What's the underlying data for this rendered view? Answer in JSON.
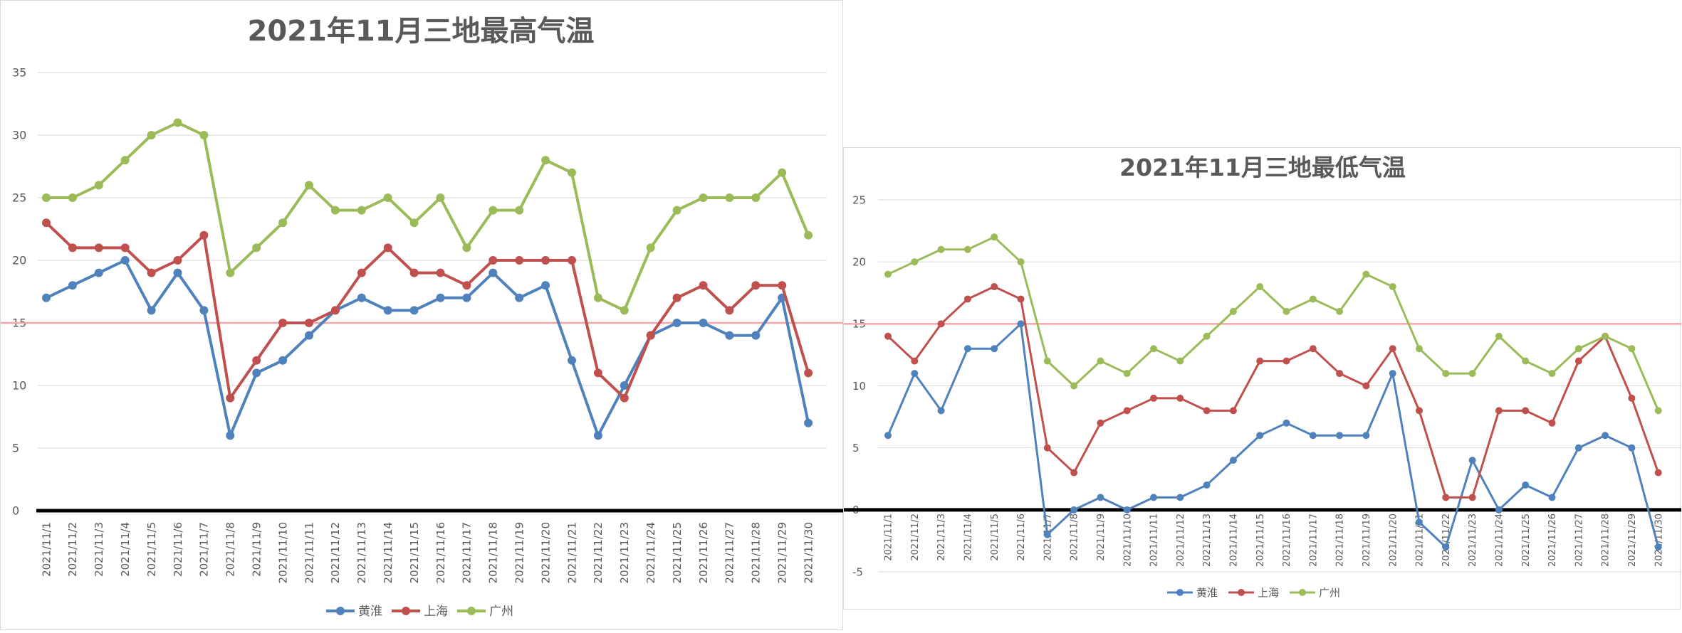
{
  "chart_data": [
    {
      "type": "line",
      "title": "2021年11月三地最高气温",
      "categories": [
        "2021/11/1",
        "2021/11/2",
        "2021/11/3",
        "2021/11/4",
        "2021/11/5",
        "2021/11/6",
        "2021/11/7",
        "2021/11/8",
        "2021/11/9",
        "2021/11/10",
        "2021/11/11",
        "2021/11/12",
        "2021/11/13",
        "2021/11/14",
        "2021/11/15",
        "2021/11/16",
        "2021/11/17",
        "2021/11/18",
        "2021/11/19",
        "2021/11/20",
        "2021/11/21",
        "2021/11/22",
        "2021/11/23",
        "2021/11/24",
        "2021/11/25",
        "2021/11/26",
        "2021/11/27",
        "2021/11/28",
        "2021/11/29",
        "2021/11/30"
      ],
      "ylim": [
        0,
        35
      ],
      "yticks": [
        0,
        5,
        10,
        15,
        20,
        25,
        30,
        35
      ],
      "ytick_labels": [
        "0",
        "5",
        "10",
        "15",
        "20",
        "25",
        "30",
        "35"
      ],
      "grid": true,
      "legend_position": "bottom",
      "reference_line": {
        "value": 15,
        "color": "#f4a6a6"
      },
      "series": [
        {
          "name": "黄淮",
          "color": "#4f81bd",
          "values": [
            17,
            18,
            19,
            20,
            16,
            19,
            16,
            6,
            11,
            12,
            14,
            16,
            17,
            16,
            16,
            17,
            17,
            19,
            17,
            18,
            12,
            6,
            10,
            14,
            15,
            15,
            14,
            14,
            17,
            7
          ]
        },
        {
          "name": "上海",
          "color": "#c0504d",
          "values": [
            23,
            21,
            21,
            21,
            19,
            20,
            22,
            9,
            12,
            15,
            15,
            16,
            19,
            21,
            19,
            19,
            18,
            20,
            20,
            20,
            20,
            11,
            9,
            14,
            17,
            18,
            16,
            18,
            18,
            11
          ]
        },
        {
          "name": "广州",
          "color": "#9bbb59",
          "values": [
            25,
            25,
            26,
            28,
            30,
            31,
            30,
            19,
            21,
            23,
            26,
            24,
            24,
            25,
            23,
            25,
            21,
            24,
            24,
            28,
            27,
            17,
            16,
            21,
            24,
            25,
            25,
            25,
            27,
            22
          ]
        }
      ]
    },
    {
      "type": "line",
      "title": "2021年11月三地最低气温",
      "categories": [
        "2021/11/1",
        "2021/11/2",
        "2021/11/3",
        "2021/11/4",
        "2021/11/5",
        "2021/11/6",
        "2021/11/7",
        "2021/11/8",
        "2021/11/9",
        "2021/11/10",
        "2021/11/11",
        "2021/11/12",
        "2021/11/13",
        "2021/11/14",
        "2021/11/15",
        "2021/11/16",
        "2021/11/17",
        "2021/11/18",
        "2021/11/19",
        "2021/11/20",
        "2021/11/21",
        "2021/11/22",
        "2021/11/23",
        "2021/11/24",
        "2021/11/25",
        "2021/11/26",
        "2021/11/27",
        "2021/11/28",
        "2021/11/29",
        "2021/11/30"
      ],
      "ylim": [
        -5,
        25
      ],
      "yticks": [
        -5,
        0,
        5,
        10,
        15,
        20,
        25
      ],
      "ytick_labels": [
        "-5",
        "0",
        "5",
        "10",
        "15",
        "20",
        "25"
      ],
      "grid": true,
      "legend_position": "bottom",
      "reference_line": {
        "value": 15,
        "color": "#f4a6a6"
      },
      "series": [
        {
          "name": "黄淮",
          "color": "#4f81bd",
          "values": [
            6,
            11,
            8,
            13,
            13,
            15,
            -2,
            0,
            1,
            0,
            1,
            1,
            2,
            4,
            6,
            7,
            6,
            6,
            6,
            11,
            -1,
            -3,
            4,
            0,
            2,
            1,
            5,
            6,
            5,
            -3
          ]
        },
        {
          "name": "上海",
          "color": "#c0504d",
          "values": [
            14,
            12,
            15,
            17,
            18,
            17,
            5,
            3,
            7,
            8,
            9,
            9,
            8,
            8,
            12,
            12,
            13,
            11,
            10,
            13,
            8,
            1,
            1,
            8,
            8,
            7,
            12,
            14,
            9,
            3
          ]
        },
        {
          "name": "广州",
          "color": "#9bbb59",
          "values": [
            19,
            20,
            21,
            21,
            22,
            20,
            12,
            10,
            12,
            11,
            13,
            12,
            14,
            16,
            18,
            16,
            17,
            16,
            19,
            18,
            13,
            11,
            11,
            14,
            12,
            11,
            13,
            14,
            13,
            8
          ]
        }
      ]
    }
  ]
}
